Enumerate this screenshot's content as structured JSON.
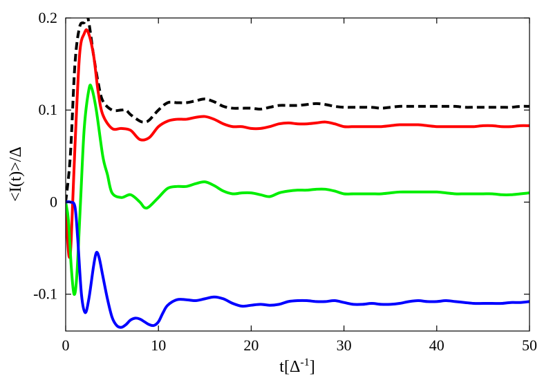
{
  "chart_data": {
    "type": "line",
    "xlabel_base": "t[Δ",
    "xlabel_sup": "-1",
    "xlabel_end": "]",
    "ylabel": "<I(t)>/Δ",
    "xlim": [
      0,
      50
    ],
    "ylim": [
      -0.14,
      0.2
    ],
    "xticks": [
      0,
      10,
      20,
      30,
      40,
      50
    ],
    "xtick_labels": [
      "0",
      "10",
      "20",
      "30",
      "40",
      "50"
    ],
    "yticks": [
      -0.1,
      0,
      0.1,
      0.2
    ],
    "ytick_labels": [
      "-0.1",
      "0",
      "0.1",
      "0.2"
    ],
    "grid": false,
    "legend": "none",
    "series": [
      {
        "color": "#000000",
        "dash": "dashed",
        "points": [
          [
            0,
            0
          ],
          [
            0.5,
            0.05
          ],
          [
            1,
            0.15
          ],
          [
            1.5,
            0.19
          ],
          [
            2,
            0.195
          ],
          [
            2.4,
            0.2
          ],
          [
            3,
            0.16
          ],
          [
            3.5,
            0.13
          ],
          [
            4,
            0.11
          ],
          [
            5,
            0.1
          ],
          [
            6,
            0.1
          ],
          [
            6.5,
            0.1
          ],
          [
            7,
            0.095
          ],
          [
            8,
            0.088
          ],
          [
            8.5,
            0.087
          ],
          [
            9,
            0.089
          ],
          [
            10,
            0.1
          ],
          [
            11,
            0.108
          ],
          [
            12,
            0.108
          ],
          [
            13,
            0.108
          ],
          [
            14,
            0.11
          ],
          [
            15,
            0.112
          ],
          [
            16,
            0.109
          ],
          [
            17,
            0.104
          ],
          [
            18,
            0.102
          ],
          [
            19,
            0.102
          ],
          [
            20,
            0.102
          ],
          [
            21,
            0.101
          ],
          [
            22,
            0.103
          ],
          [
            23,
            0.105
          ],
          [
            24,
            0.105
          ],
          [
            25,
            0.105
          ],
          [
            26,
            0.106
          ],
          [
            27,
            0.107
          ],
          [
            28,
            0.106
          ],
          [
            29,
            0.104
          ],
          [
            30,
            0.103
          ],
          [
            31,
            0.103
          ],
          [
            32,
            0.103
          ],
          [
            33,
            0.103
          ],
          [
            34,
            0.102
          ],
          [
            35,
            0.103
          ],
          [
            36,
            0.104
          ],
          [
            37,
            0.104
          ],
          [
            38,
            0.104
          ],
          [
            39,
            0.104
          ],
          [
            40,
            0.104
          ],
          [
            41,
            0.104
          ],
          [
            42,
            0.104
          ],
          [
            43,
            0.103
          ],
          [
            44,
            0.103
          ],
          [
            45,
            0.103
          ],
          [
            46,
            0.103
          ],
          [
            47,
            0.103
          ],
          [
            48,
            0.103
          ],
          [
            49,
            0.104
          ],
          [
            50,
            0.104
          ]
        ]
      },
      {
        "color": "#ff0000",
        "dash": "solid",
        "points": [
          [
            0,
            0
          ],
          [
            0.2,
            -0.04
          ],
          [
            0.4,
            -0.06
          ],
          [
            0.6,
            -0.04
          ],
          [
            1,
            0.06
          ],
          [
            1.5,
            0.16
          ],
          [
            2,
            0.183
          ],
          [
            2.4,
            0.185
          ],
          [
            3,
            0.16
          ],
          [
            3.5,
            0.12
          ],
          [
            4,
            0.095
          ],
          [
            5,
            0.08
          ],
          [
            6,
            0.08
          ],
          [
            7,
            0.078
          ],
          [
            8,
            0.068
          ],
          [
            9,
            0.07
          ],
          [
            10,
            0.082
          ],
          [
            11,
            0.088
          ],
          [
            12,
            0.09
          ],
          [
            13,
            0.09
          ],
          [
            14,
            0.092
          ],
          [
            15,
            0.093
          ],
          [
            16,
            0.09
          ],
          [
            17,
            0.085
          ],
          [
            18,
            0.082
          ],
          [
            19,
            0.082
          ],
          [
            20,
            0.08
          ],
          [
            21,
            0.08
          ],
          [
            22,
            0.082
          ],
          [
            23,
            0.085
          ],
          [
            24,
            0.086
          ],
          [
            25,
            0.085
          ],
          [
            26,
            0.085
          ],
          [
            27,
            0.086
          ],
          [
            28,
            0.087
          ],
          [
            29,
            0.085
          ],
          [
            30,
            0.082
          ],
          [
            31,
            0.082
          ],
          [
            32,
            0.082
          ],
          [
            33,
            0.082
          ],
          [
            34,
            0.082
          ],
          [
            35,
            0.083
          ],
          [
            36,
            0.084
          ],
          [
            37,
            0.084
          ],
          [
            38,
            0.084
          ],
          [
            39,
            0.083
          ],
          [
            40,
            0.082
          ],
          [
            41,
            0.082
          ],
          [
            42,
            0.082
          ],
          [
            43,
            0.082
          ],
          [
            44,
            0.082
          ],
          [
            45,
            0.083
          ],
          [
            46,
            0.083
          ],
          [
            47,
            0.082
          ],
          [
            48,
            0.082
          ],
          [
            49,
            0.083
          ],
          [
            50,
            0.083
          ]
        ]
      },
      {
        "color": "#00ee00",
        "dash": "solid",
        "points": [
          [
            0,
            0
          ],
          [
            0.3,
            -0.02
          ],
          [
            0.6,
            -0.07
          ],
          [
            0.9,
            -0.1
          ],
          [
            1.2,
            -0.08
          ],
          [
            1.6,
            0
          ],
          [
            2,
            0.08
          ],
          [
            2.5,
            0.122
          ],
          [
            2.8,
            0.124
          ],
          [
            3.3,
            0.1
          ],
          [
            4,
            0.05
          ],
          [
            4.5,
            0.03
          ],
          [
            5,
            0.01
          ],
          [
            6,
            0.005
          ],
          [
            7,
            0.008
          ],
          [
            8,
            0
          ],
          [
            8.5,
            -0.006
          ],
          [
            9,
            -0.005
          ],
          [
            10,
            0.005
          ],
          [
            11,
            0.015
          ],
          [
            12,
            0.017
          ],
          [
            13,
            0.017
          ],
          [
            14,
            0.02
          ],
          [
            15,
            0.022
          ],
          [
            16,
            0.018
          ],
          [
            17,
            0.012
          ],
          [
            18,
            0.009
          ],
          [
            19,
            0.01
          ],
          [
            20,
            0.01
          ],
          [
            21,
            0.008
          ],
          [
            22,
            0.006
          ],
          [
            23,
            0.01
          ],
          [
            24,
            0.012
          ],
          [
            25,
            0.013
          ],
          [
            26,
            0.013
          ],
          [
            27,
            0.014
          ],
          [
            28,
            0.014
          ],
          [
            29,
            0.012
          ],
          [
            30,
            0.009
          ],
          [
            31,
            0.009
          ],
          [
            32,
            0.009
          ],
          [
            33,
            0.009
          ],
          [
            34,
            0.009
          ],
          [
            35,
            0.01
          ],
          [
            36,
            0.011
          ],
          [
            37,
            0.011
          ],
          [
            38,
            0.011
          ],
          [
            39,
            0.011
          ],
          [
            40,
            0.011
          ],
          [
            41,
            0.01
          ],
          [
            42,
            0.009
          ],
          [
            43,
            0.009
          ],
          [
            44,
            0.009
          ],
          [
            45,
            0.009
          ],
          [
            46,
            0.009
          ],
          [
            47,
            0.008
          ],
          [
            48,
            0.008
          ],
          [
            49,
            0.009
          ],
          [
            50,
            0.01
          ]
        ]
      },
      {
        "color": "#0000ff",
        "dash": "solid",
        "points": [
          [
            0,
            0
          ],
          [
            0.5,
            0
          ],
          [
            1,
            -0.005
          ],
          [
            1.3,
            -0.04
          ],
          [
            1.7,
            -0.1
          ],
          [
            2.1,
            -0.12
          ],
          [
            2.5,
            -0.105
          ],
          [
            3,
            -0.07
          ],
          [
            3.3,
            -0.055
          ],
          [
            3.6,
            -0.06
          ],
          [
            4,
            -0.08
          ],
          [
            4.5,
            -0.105
          ],
          [
            5,
            -0.125
          ],
          [
            5.5,
            -0.134
          ],
          [
            6,
            -0.136
          ],
          [
            6.5,
            -0.133
          ],
          [
            7,
            -0.128
          ],
          [
            7.5,
            -0.126
          ],
          [
            8,
            -0.127
          ],
          [
            8.5,
            -0.13
          ],
          [
            9,
            -0.133
          ],
          [
            9.5,
            -0.134
          ],
          [
            10,
            -0.13
          ],
          [
            10.5,
            -0.12
          ],
          [
            11,
            -0.112
          ],
          [
            12,
            -0.106
          ],
          [
            13,
            -0.106
          ],
          [
            14,
            -0.107
          ],
          [
            15,
            -0.105
          ],
          [
            16,
            -0.103
          ],
          [
            17,
            -0.105
          ],
          [
            18,
            -0.11
          ],
          [
            19,
            -0.113
          ],
          [
            20,
            -0.112
          ],
          [
            21,
            -0.111
          ],
          [
            22,
            -0.112
          ],
          [
            23,
            -0.111
          ],
          [
            24,
            -0.108
          ],
          [
            25,
            -0.107
          ],
          [
            26,
            -0.107
          ],
          [
            27,
            -0.108
          ],
          [
            28,
            -0.108
          ],
          [
            29,
            -0.107
          ],
          [
            30,
            -0.109
          ],
          [
            31,
            -0.111
          ],
          [
            32,
            -0.111
          ],
          [
            33,
            -0.11
          ],
          [
            34,
            -0.111
          ],
          [
            35,
            -0.111
          ],
          [
            36,
            -0.11
          ],
          [
            37,
            -0.108
          ],
          [
            38,
            -0.107
          ],
          [
            39,
            -0.108
          ],
          [
            40,
            -0.108
          ],
          [
            41,
            -0.107
          ],
          [
            42,
            -0.108
          ],
          [
            43,
            -0.109
          ],
          [
            44,
            -0.11
          ],
          [
            45,
            -0.11
          ],
          [
            46,
            -0.11
          ],
          [
            47,
            -0.11
          ],
          [
            48,
            -0.109
          ],
          [
            49,
            -0.109
          ],
          [
            50,
            -0.108
          ]
        ]
      }
    ]
  }
}
